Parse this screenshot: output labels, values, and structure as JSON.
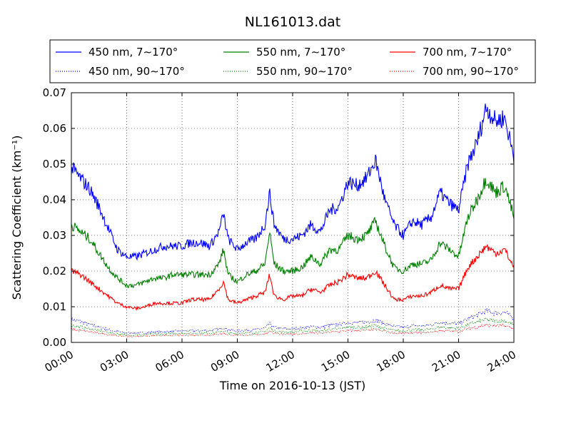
{
  "chart_data": {
    "type": "line",
    "title": "NL161013.dat",
    "xlabel": "Time on 2016-10-13 (JST)",
    "ylabel": "Scattering Coefficient (km⁻¹)",
    "xlim": [
      "00:00",
      "24:00"
    ],
    "ylim": [
      0,
      0.07
    ],
    "x_ticks": [
      "00:00",
      "03:00",
      "06:00",
      "09:00",
      "12:00",
      "15:00",
      "18:00",
      "21:00",
      "24:00"
    ],
    "y_ticks": [
      "0.00",
      "0.01",
      "0.02",
      "0.03",
      "0.04",
      "0.05",
      "0.06",
      "0.07"
    ],
    "grid": true,
    "legend_placement": "top, above plot",
    "x_hours": [
      0,
      0.5,
      1,
      1.5,
      2,
      2.5,
      3,
      3.5,
      4,
      4.5,
      5,
      5.5,
      6,
      6.5,
      7,
      7.5,
      8,
      8.25,
      8.5,
      9,
      9.5,
      10,
      10.5,
      10.75,
      11,
      11.5,
      12,
      12.5,
      13,
      13.5,
      14,
      14.5,
      15,
      15.5,
      16,
      16.5,
      17,
      17.5,
      18,
      18.5,
      19,
      19.5,
      20,
      20.5,
      21,
      21.5,
      22,
      22.5,
      23,
      23.5,
      24
    ],
    "series": [
      {
        "name": "450 nm, 7∼170°",
        "color": "#0000ff",
        "style": "solid",
        "values": [
          0.049,
          0.046,
          0.043,
          0.038,
          0.032,
          0.026,
          0.024,
          0.024,
          0.025,
          0.026,
          0.027,
          0.027,
          0.027,
          0.028,
          0.028,
          0.027,
          0.031,
          0.036,
          0.029,
          0.026,
          0.028,
          0.029,
          0.033,
          0.042,
          0.033,
          0.029,
          0.029,
          0.03,
          0.033,
          0.031,
          0.037,
          0.038,
          0.045,
          0.044,
          0.046,
          0.051,
          0.04,
          0.033,
          0.03,
          0.034,
          0.033,
          0.035,
          0.042,
          0.039,
          0.037,
          0.05,
          0.056,
          0.066,
          0.062,
          0.063,
          0.052
        ]
      },
      {
        "name": "450 nm, 90∼170°",
        "color": "#0000ff",
        "style": "dotted",
        "values": [
          0.0065,
          0.0058,
          0.005,
          0.0043,
          0.0036,
          0.003,
          0.0027,
          0.0026,
          0.0027,
          0.0029,
          0.003,
          0.0031,
          0.0032,
          0.0033,
          0.0033,
          0.0033,
          0.0037,
          0.0042,
          0.0035,
          0.0032,
          0.0034,
          0.0036,
          0.004,
          0.0052,
          0.0042,
          0.0038,
          0.0038,
          0.004,
          0.0044,
          0.0042,
          0.0048,
          0.005,
          0.0056,
          0.0055,
          0.0057,
          0.0062,
          0.0052,
          0.0045,
          0.0042,
          0.0047,
          0.0046,
          0.0049,
          0.0057,
          0.0054,
          0.0052,
          0.0066,
          0.0076,
          0.0088,
          0.0083,
          0.0084,
          0.0068
        ]
      },
      {
        "name": "550 nm, 7∼170°",
        "color": "#008000",
        "style": "solid",
        "values": [
          0.033,
          0.031,
          0.029,
          0.025,
          0.021,
          0.018,
          0.016,
          0.016,
          0.017,
          0.018,
          0.018,
          0.019,
          0.019,
          0.019,
          0.019,
          0.019,
          0.022,
          0.026,
          0.019,
          0.017,
          0.019,
          0.02,
          0.022,
          0.031,
          0.022,
          0.02,
          0.02,
          0.021,
          0.024,
          0.022,
          0.026,
          0.026,
          0.03,
          0.029,
          0.03,
          0.034,
          0.027,
          0.021,
          0.02,
          0.022,
          0.022,
          0.023,
          0.028,
          0.026,
          0.024,
          0.035,
          0.04,
          0.046,
          0.042,
          0.044,
          0.035
        ]
      },
      {
        "name": "550 nm, 90∼170°",
        "color": "#008000",
        "style": "dotted",
        "values": [
          0.0048,
          0.0043,
          0.0038,
          0.0033,
          0.0028,
          0.0024,
          0.0021,
          0.0021,
          0.0022,
          0.0023,
          0.0024,
          0.0025,
          0.0025,
          0.0026,
          0.0026,
          0.0026,
          0.0029,
          0.0033,
          0.0027,
          0.0025,
          0.0027,
          0.0028,
          0.0031,
          0.0041,
          0.0032,
          0.0029,
          0.0029,
          0.0031,
          0.0034,
          0.0032,
          0.0037,
          0.0038,
          0.0043,
          0.0042,
          0.0043,
          0.0047,
          0.0039,
          0.0034,
          0.0032,
          0.0035,
          0.0035,
          0.0037,
          0.0043,
          0.0041,
          0.0039,
          0.005,
          0.0057,
          0.0064,
          0.006,
          0.0061,
          0.005
        ]
      },
      {
        "name": "700 nm, 7∼170°",
        "color": "#ff0000",
        "style": "solid",
        "values": [
          0.02,
          0.019,
          0.017,
          0.015,
          0.013,
          0.011,
          0.01,
          0.0095,
          0.01,
          0.011,
          0.011,
          0.011,
          0.011,
          0.012,
          0.012,
          0.012,
          0.015,
          0.017,
          0.012,
          0.011,
          0.012,
          0.013,
          0.014,
          0.019,
          0.013,
          0.012,
          0.013,
          0.013,
          0.015,
          0.014,
          0.016,
          0.017,
          0.019,
          0.018,
          0.018,
          0.02,
          0.016,
          0.012,
          0.012,
          0.013,
          0.013,
          0.014,
          0.016,
          0.015,
          0.015,
          0.021,
          0.024,
          0.027,
          0.025,
          0.026,
          0.021
        ]
      },
      {
        "name": "700 nm, 90∼170°",
        "color": "#ff0000",
        "style": "dotted",
        "values": [
          0.0037,
          0.0033,
          0.003,
          0.0026,
          0.0022,
          0.0019,
          0.0017,
          0.0017,
          0.0018,
          0.0019,
          0.0019,
          0.002,
          0.002,
          0.002,
          0.0021,
          0.0021,
          0.0023,
          0.0026,
          0.0022,
          0.002,
          0.0021,
          0.0022,
          0.0024,
          0.0032,
          0.0025,
          0.0023,
          0.0023,
          0.0024,
          0.0027,
          0.0025,
          0.0029,
          0.003,
          0.0033,
          0.0033,
          0.0034,
          0.0036,
          0.0031,
          0.0027,
          0.0025,
          0.0027,
          0.0027,
          0.0029,
          0.0033,
          0.0032,
          0.003,
          0.0038,
          0.0043,
          0.0049,
          0.0046,
          0.0047,
          0.0039
        ]
      }
    ]
  }
}
